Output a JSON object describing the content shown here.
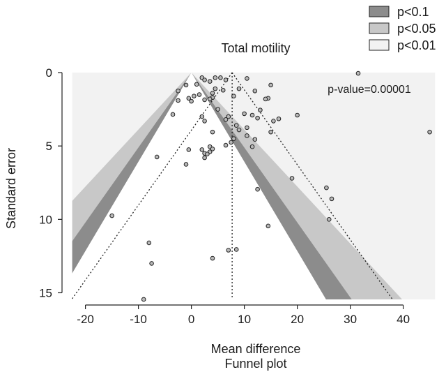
{
  "chart_data": {
    "type": "scatter",
    "title": "Total motility",
    "xlabel": "Mean difference",
    "caption": "Funnel plot",
    "ylabel": "Standard error",
    "annotation": "p-value=0.00001",
    "xlim": [
      -23.5,
      46.5
    ],
    "ylim": [
      0,
      15.5
    ],
    "y_inverted": true,
    "x_ticks": [
      -20,
      -10,
      0,
      10,
      20,
      30,
      40
    ],
    "y_ticks": [
      0,
      5,
      10,
      15
    ],
    "summary_estimate": 7.7,
    "contour_center": 0,
    "legend": [
      {
        "label": "p<0.1",
        "color": "#8c8c8c"
      },
      {
        "label": "p<0.05",
        "color": "#c8c8c8"
      },
      {
        "label": "p<0.01",
        "color": "#f2f2f2"
      }
    ],
    "contour_levels_z": {
      "p<0.1": 1.645,
      "p<0.05": 1.96,
      "p<0.01": 2.576
    },
    "points": [
      {
        "x": 31.5,
        "y": 0.05
      },
      {
        "x": 2.0,
        "y": 0.35
      },
      {
        "x": 4.5,
        "y": 0.35
      },
      {
        "x": 5.5,
        "y": 0.35
      },
      {
        "x": 10.5,
        "y": 0.4
      },
      {
        "x": 2.5,
        "y": 0.5
      },
      {
        "x": 6.5,
        "y": 0.5
      },
      {
        "x": 3.5,
        "y": 0.6
      },
      {
        "x": 1.0,
        "y": 0.8
      },
      {
        "x": 15.0,
        "y": 0.85
      },
      {
        "x": -1.0,
        "y": 0.85
      },
      {
        "x": 4.5,
        "y": 1.1
      },
      {
        "x": 9.0,
        "y": 1.1
      },
      {
        "x": 6.0,
        "y": 1.2
      },
      {
        "x": -2.5,
        "y": 1.25
      },
      {
        "x": 12.0,
        "y": 1.25
      },
      {
        "x": 4.0,
        "y": 1.4
      },
      {
        "x": 1.5,
        "y": 1.5
      },
      {
        "x": 8.0,
        "y": 1.6
      },
      {
        "x": 0.5,
        "y": 1.6
      },
      {
        "x": 4.0,
        "y": 1.7
      },
      {
        "x": -0.5,
        "y": 1.75
      },
      {
        "x": 14.5,
        "y": 1.75
      },
      {
        "x": 14.0,
        "y": 1.8
      },
      {
        "x": 3.5,
        "y": 1.8
      },
      {
        "x": 2.5,
        "y": 1.85
      },
      {
        "x": -2.5,
        "y": 1.9
      },
      {
        "x": 0.0,
        "y": 1.95
      },
      {
        "x": 5.0,
        "y": 2.5
      },
      {
        "x": 13.0,
        "y": 2.55
      },
      {
        "x": 10.0,
        "y": 2.8
      },
      {
        "x": -3.5,
        "y": 2.85
      },
      {
        "x": 11.5,
        "y": 2.9
      },
      {
        "x": 20.0,
        "y": 2.9
      },
      {
        "x": 7.0,
        "y": 3.0
      },
      {
        "x": 2.0,
        "y": 3.0
      },
      {
        "x": 12.5,
        "y": 3.1
      },
      {
        "x": 16.5,
        "y": 3.15
      },
      {
        "x": 6.5,
        "y": 3.2
      },
      {
        "x": 2.5,
        "y": 3.3
      },
      {
        "x": 15.5,
        "y": 3.3
      },
      {
        "x": 8.5,
        "y": 3.6
      },
      {
        "x": 10.5,
        "y": 3.75
      },
      {
        "x": 9.0,
        "y": 3.9
      },
      {
        "x": 4.0,
        "y": 4.05
      },
      {
        "x": 15.0,
        "y": 4.05
      },
      {
        "x": 45.0,
        "y": 4.05
      },
      {
        "x": 10.5,
        "y": 4.3
      },
      {
        "x": 8.0,
        "y": 4.5
      },
      {
        "x": 12.0,
        "y": 4.55
      },
      {
        "x": 7.5,
        "y": 4.75
      },
      {
        "x": 6.5,
        "y": 4.95
      },
      {
        "x": 3.5,
        "y": 5.05
      },
      {
        "x": 11.5,
        "y": 5.05
      },
      {
        "x": 4.0,
        "y": 5.2
      },
      {
        "x": -0.5,
        "y": 5.25
      },
      {
        "x": 2.0,
        "y": 5.25
      },
      {
        "x": 3.5,
        "y": 5.4
      },
      {
        "x": 2.5,
        "y": 5.5
      },
      {
        "x": 3.0,
        "y": 5.55
      },
      {
        "x": -6.5,
        "y": 5.75
      },
      {
        "x": 2.5,
        "y": 5.8
      },
      {
        "x": -1.0,
        "y": 6.25
      },
      {
        "x": 19.0,
        "y": 7.2
      },
      {
        "x": 25.5,
        "y": 7.85
      },
      {
        "x": 12.5,
        "y": 7.95
      },
      {
        "x": 26.5,
        "y": 8.6
      },
      {
        "x": -15.0,
        "y": 9.75
      },
      {
        "x": 26.0,
        "y": 10.0
      },
      {
        "x": 14.5,
        "y": 10.45
      },
      {
        "x": -8.0,
        "y": 11.6
      },
      {
        "x": 8.5,
        "y": 12.05
      },
      {
        "x": 7.0,
        "y": 12.1
      },
      {
        "x": 4.0,
        "y": 12.65
      },
      {
        "x": -7.5,
        "y": 13.0
      },
      {
        "x": -9.0,
        "y": 15.45
      }
    ]
  }
}
